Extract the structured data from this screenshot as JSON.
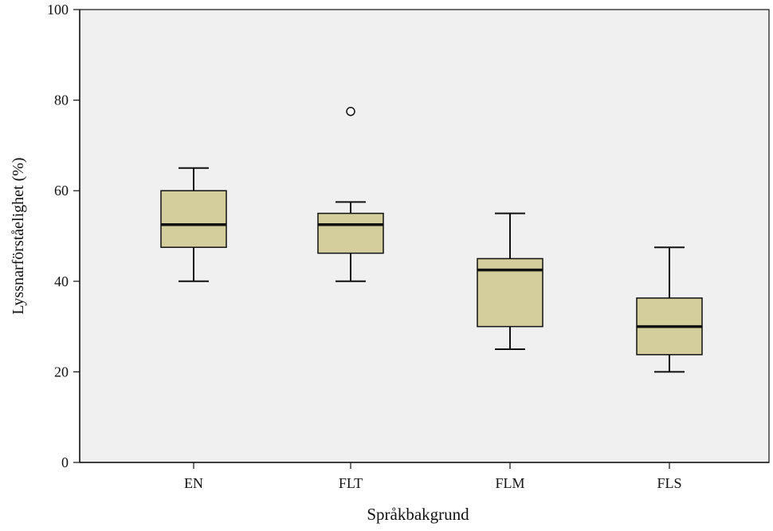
{
  "chart_data": {
    "type": "boxplot",
    "xlabel": "Språkbakgrund",
    "ylabel": "Lyssnarförståelighet (%)",
    "ylim": [
      0,
      100
    ],
    "yticks": [
      0,
      20,
      40,
      60,
      80,
      100
    ],
    "grid": false,
    "categories": [
      "EN",
      "FLT",
      "FLM",
      "FLS"
    ],
    "boxes": [
      {
        "category": "EN",
        "min": 40,
        "q1": 47.5,
        "median": 52.5,
        "q3": 60,
        "max": 65,
        "outliers": []
      },
      {
        "category": "FLT",
        "min": 40,
        "q1": 46.2,
        "median": 52.5,
        "q3": 55,
        "max": 57.5,
        "outliers": [
          77.5
        ]
      },
      {
        "category": "FLM",
        "min": 25,
        "q1": 30,
        "median": 42.5,
        "q3": 45,
        "max": 55,
        "outliers": []
      },
      {
        "category": "FLS",
        "min": 20,
        "q1": 23.8,
        "median": 30,
        "q3": 36.3,
        "max": 47.5,
        "outliers": []
      }
    ],
    "colors": {
      "plot_background": "#f0f0f0",
      "box_fill": "#d3ce9b",
      "stroke": "#111111"
    }
  }
}
